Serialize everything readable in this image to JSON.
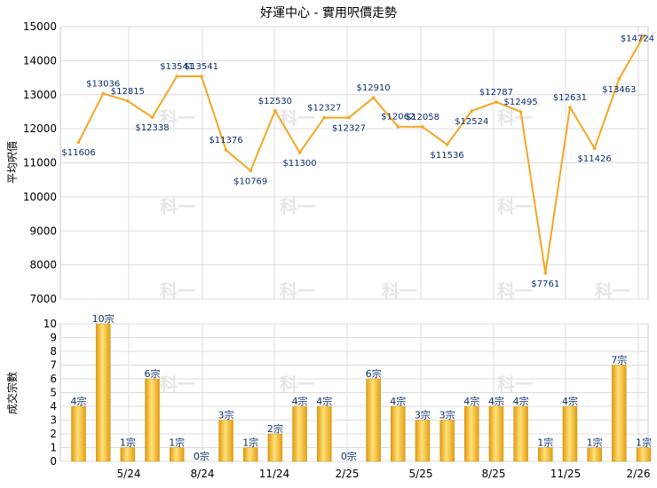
{
  "chart_data": [
    {
      "type": "line",
      "title": "好運中心 - 實用呎價走勢",
      "ylabel": "平均呎價",
      "ylim": [
        7000,
        15000
      ],
      "yticks": [
        7000,
        8000,
        9000,
        10000,
        11000,
        12000,
        13000,
        14000,
        15000
      ],
      "color": "#f5a623",
      "grid": true,
      "values": [
        11606,
        13036,
        12815,
        12338,
        13541,
        13541,
        11376,
        10769,
        12530,
        11300,
        12327,
        12327,
        12910,
        12062,
        12058,
        11536,
        12524,
        12787,
        12495,
        7761,
        12631,
        11426,
        13463,
        14724
      ],
      "labels": [
        "$11606",
        "$13036",
        "$12815",
        "$12338",
        "$13541",
        "$13541",
        "$11376",
        "$10769",
        "$12530",
        "$11300",
        "$12327",
        "$12327",
        "$12910",
        "$12062",
        "$12058",
        "$11536",
        "$12524",
        "$12787",
        "$12495",
        "$7761",
        "$12631",
        "$11426",
        "$13463",
        "$14724"
      ]
    },
    {
      "type": "bar",
      "ylabel": "成交宗數",
      "ylim": [
        0,
        10
      ],
      "yticks": [
        0,
        1,
        2,
        3,
        4,
        5,
        6,
        7,
        8,
        9,
        10
      ],
      "color": "#f5b324",
      "grid": true,
      "values": [
        4,
        10,
        1,
        6,
        1,
        0,
        3,
        1,
        2,
        4,
        4,
        0,
        6,
        4,
        3,
        3,
        4,
        4,
        4,
        1,
        4,
        1,
        7,
        1
      ],
      "labels": [
        "4宗",
        "10宗",
        "1宗",
        "6宗",
        "1宗",
        "0宗",
        "3宗",
        "1宗",
        "2宗",
        "4宗",
        "4宗",
        "0宗",
        "6宗",
        "4宗",
        "3宗",
        "3宗",
        "4宗",
        "4宗",
        "4宗",
        "1宗",
        "4宗",
        "1宗",
        "7宗",
        "1宗"
      ],
      "x_tick_labels": [
        "5/24",
        "8/24",
        "11/24",
        "2/25",
        "5/25",
        "8/25",
        "11/25",
        "2/26"
      ]
    }
  ],
  "watermark": "科一"
}
